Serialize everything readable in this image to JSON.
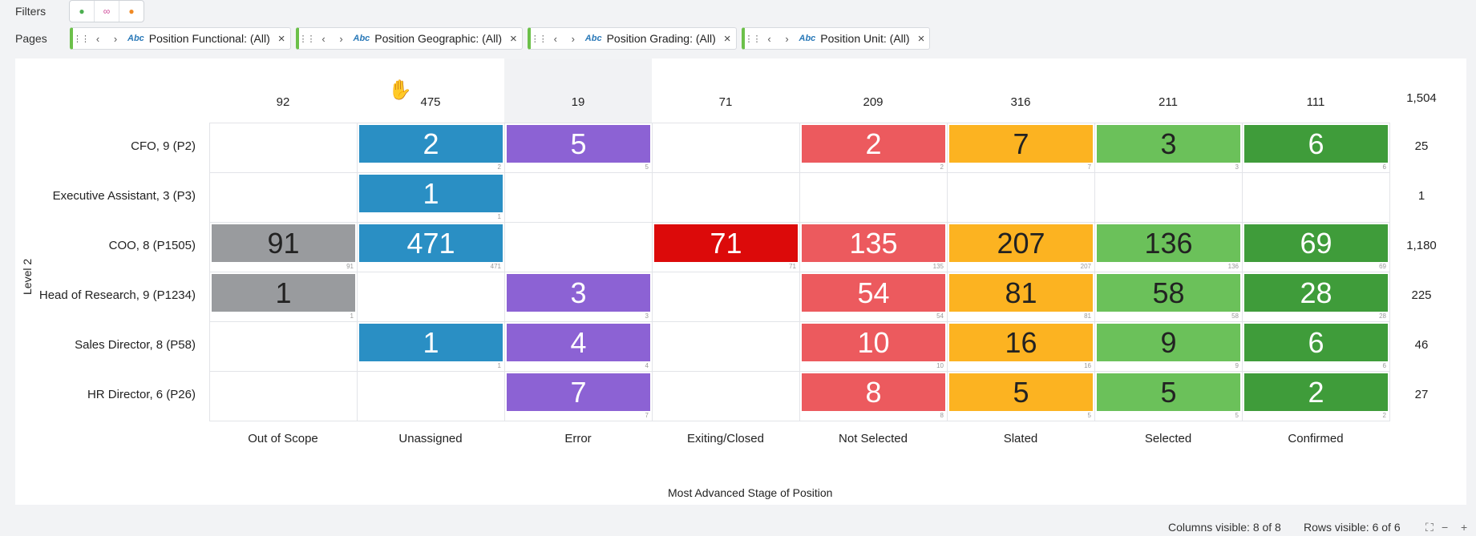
{
  "filters_label": "Filters",
  "filter_icons": [
    "person-green-icon",
    "link-pink-icon",
    "person-orange-icon"
  ],
  "pages_label": "Pages",
  "pages": [
    {
      "abc": "Abc",
      "label": "Position Functional: (All)"
    },
    {
      "abc": "Abc",
      "label": "Position Geographic: (All)"
    },
    {
      "abc": "Abc",
      "label": "Position Grading: (All)"
    },
    {
      "abc": "Abc",
      "label": "Position Unit: (All)"
    }
  ],
  "column_totals": [
    "92",
    "475",
    "19",
    "71",
    "209",
    "316",
    "211",
    "111"
  ],
  "grand_total": "1,504",
  "columns": [
    "Out of Scope",
    "Unassigned",
    "Error",
    "Exiting/Closed",
    "Not Selected",
    "Slated",
    "Selected",
    "Confirmed"
  ],
  "column_colors": [
    "#999b9e",
    "#2a8fc4",
    "#8c62d4",
    "#dc0a0a",
    "#ec5a5e",
    "#fcb321",
    "#6bc15a",
    "#3f9c3a"
  ],
  "column_text_colors": [
    "#222",
    "#fff",
    "#fff",
    "#fff",
    "#fff",
    "#222",
    "#222",
    "#fff"
  ],
  "rows": [
    {
      "label": "CFO, 9 (P2)",
      "total": "25",
      "cells": [
        "",
        "2",
        "5",
        "",
        "2",
        "7",
        "3",
        "6"
      ]
    },
    {
      "label": "Executive Assistant, 3 (P3)",
      "total": "1",
      "cells": [
        "",
        "1",
        "",
        "",
        "",
        "",
        "",
        ""
      ]
    },
    {
      "label": "COO, 8 (P1505)",
      "total": "1,180",
      "cells": [
        "91",
        "471",
        "",
        "71",
        "135",
        "207",
        "136",
        "69"
      ]
    },
    {
      "label": "Head of Research, 9 (P1234)",
      "total": "225",
      "cells": [
        "1",
        "",
        "3",
        "",
        "54",
        "81",
        "58",
        "28"
      ]
    },
    {
      "label": "Sales Director, 8 (P58)",
      "total": "46",
      "cells": [
        "",
        "1",
        "4",
        "",
        "10",
        "16",
        "9",
        "6"
      ]
    },
    {
      "label": "HR Director, 6 (P26)",
      "total": "27",
      "cells": [
        "",
        "",
        "7",
        "",
        "8",
        "5",
        "5",
        "2"
      ]
    }
  ],
  "y_axis_label": "Level 2",
  "x_axis_label": "Most Advanced Stage of Position",
  "status": {
    "columns_visible": "Columns visible: 8 of 8",
    "rows_visible": "Rows visible: 6 of 6"
  }
}
